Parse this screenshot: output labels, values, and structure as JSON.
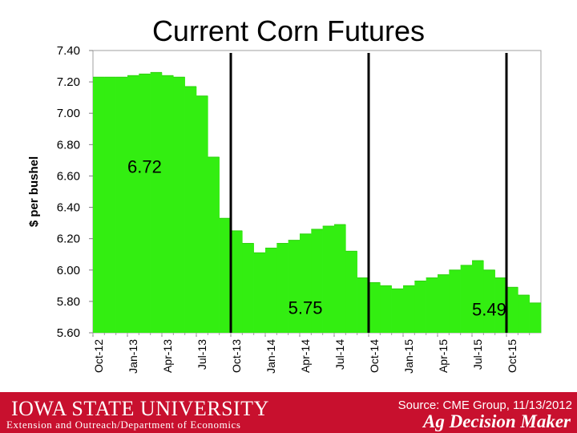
{
  "chart_data": {
    "type": "bar",
    "title": "Current Corn Futures",
    "ylabel": "$ per bushel",
    "xlabel": "",
    "ylim": [
      5.6,
      7.4
    ],
    "yticks": [
      "7.40",
      "7.20",
      "7.00",
      "6.80",
      "6.60",
      "6.40",
      "6.20",
      "6.00",
      "5.80",
      "5.60"
    ],
    "categories": [
      "Oct-12",
      "Nov-12",
      "Dec-12",
      "Jan-13",
      "Feb-13",
      "Mar-13",
      "Apr-13",
      "May-13",
      "Jun-13",
      "Jul-13",
      "Aug-13",
      "Sep-13",
      "Oct-13",
      "Nov-13",
      "Dec-13",
      "Jan-14",
      "Feb-14",
      "Mar-14",
      "Apr-14",
      "May-14",
      "Jun-14",
      "Jul-14",
      "Aug-14",
      "Sep-14",
      "Oct-14",
      "Nov-14",
      "Dec-14",
      "Jan-15",
      "Feb-15",
      "Mar-15",
      "Apr-15",
      "May-15",
      "Jun-15",
      "Jul-15",
      "Aug-15",
      "Sep-15",
      "Oct-15",
      "Nov-15",
      "Dec-15"
    ],
    "values": [
      7.23,
      7.23,
      7.23,
      7.24,
      7.25,
      7.26,
      7.24,
      7.23,
      7.17,
      7.11,
      6.72,
      6.33,
      6.25,
      6.17,
      6.11,
      6.14,
      6.17,
      6.19,
      6.23,
      6.26,
      6.28,
      6.29,
      6.12,
      5.95,
      5.92,
      5.9,
      5.88,
      5.9,
      5.93,
      5.95,
      5.97,
      6.0,
      6.03,
      6.06,
      6.0,
      5.95,
      5.89,
      5.84,
      5.79
    ],
    "tick_labels": [
      "Oct-12",
      "Jan-13",
      "Apr-13",
      "Jul-13",
      "Oct-13",
      "Jan-14",
      "Apr-14",
      "Jul-14",
      "Oct-14",
      "Jan-15",
      "Apr-15",
      "Jul-15",
      "Oct-15"
    ],
    "tick_every": 3,
    "divider_after": [
      "Sep-13",
      "Sep-14",
      "Sep-15"
    ],
    "annotations": [
      {
        "text": "6.72",
        "category": "Jan-13",
        "y": 6.62
      },
      {
        "text": "5.75",
        "category": "Mar-14",
        "y": 5.72
      },
      {
        "text": "5.49",
        "category": "Jul-15",
        "y": 5.71
      }
    ],
    "bar_color": "#33ee11",
    "grid": false
  },
  "footer": {
    "university": "IOWA STATE UNIVERSITY",
    "department": "Extension and Outreach/Department of Economics",
    "source": "Source: CME Group, 11/13/2012",
    "brand": "Ag Decision Maker"
  },
  "colors": {
    "footer_bg": "#c8102e",
    "bar": "#33ee11"
  }
}
